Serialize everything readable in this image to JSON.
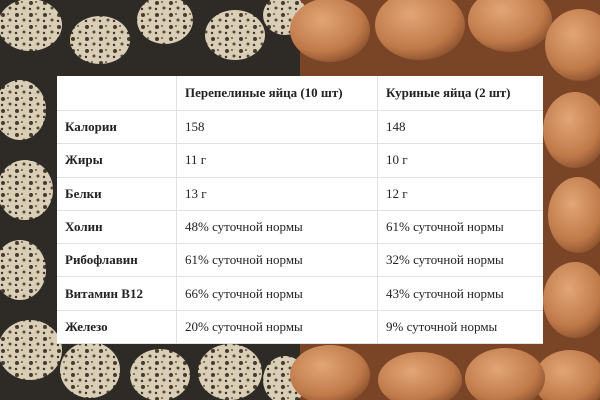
{
  "table": {
    "header": [
      "Перепелиные яйца (10 шт)",
      "Куриные яйца (2 шт)"
    ],
    "rows": [
      [
        "Калории",
        "158",
        "148"
      ],
      [
        "Жиры",
        "11 г",
        "10 г"
      ],
      [
        "Белки",
        "13 г",
        "12 г"
      ],
      [
        "Холин",
        "48% суточной нормы",
        "61% суточной нормы"
      ],
      [
        "Рибофлавин",
        "61% суточной нормы",
        "32% суточной нормы"
      ],
      [
        "Витамин B12",
        "66% суточной нормы",
        "43% суточной нормы"
      ],
      [
        "Железо",
        "20% суточной нормы",
        "9% суточной нормы"
      ]
    ]
  }
}
